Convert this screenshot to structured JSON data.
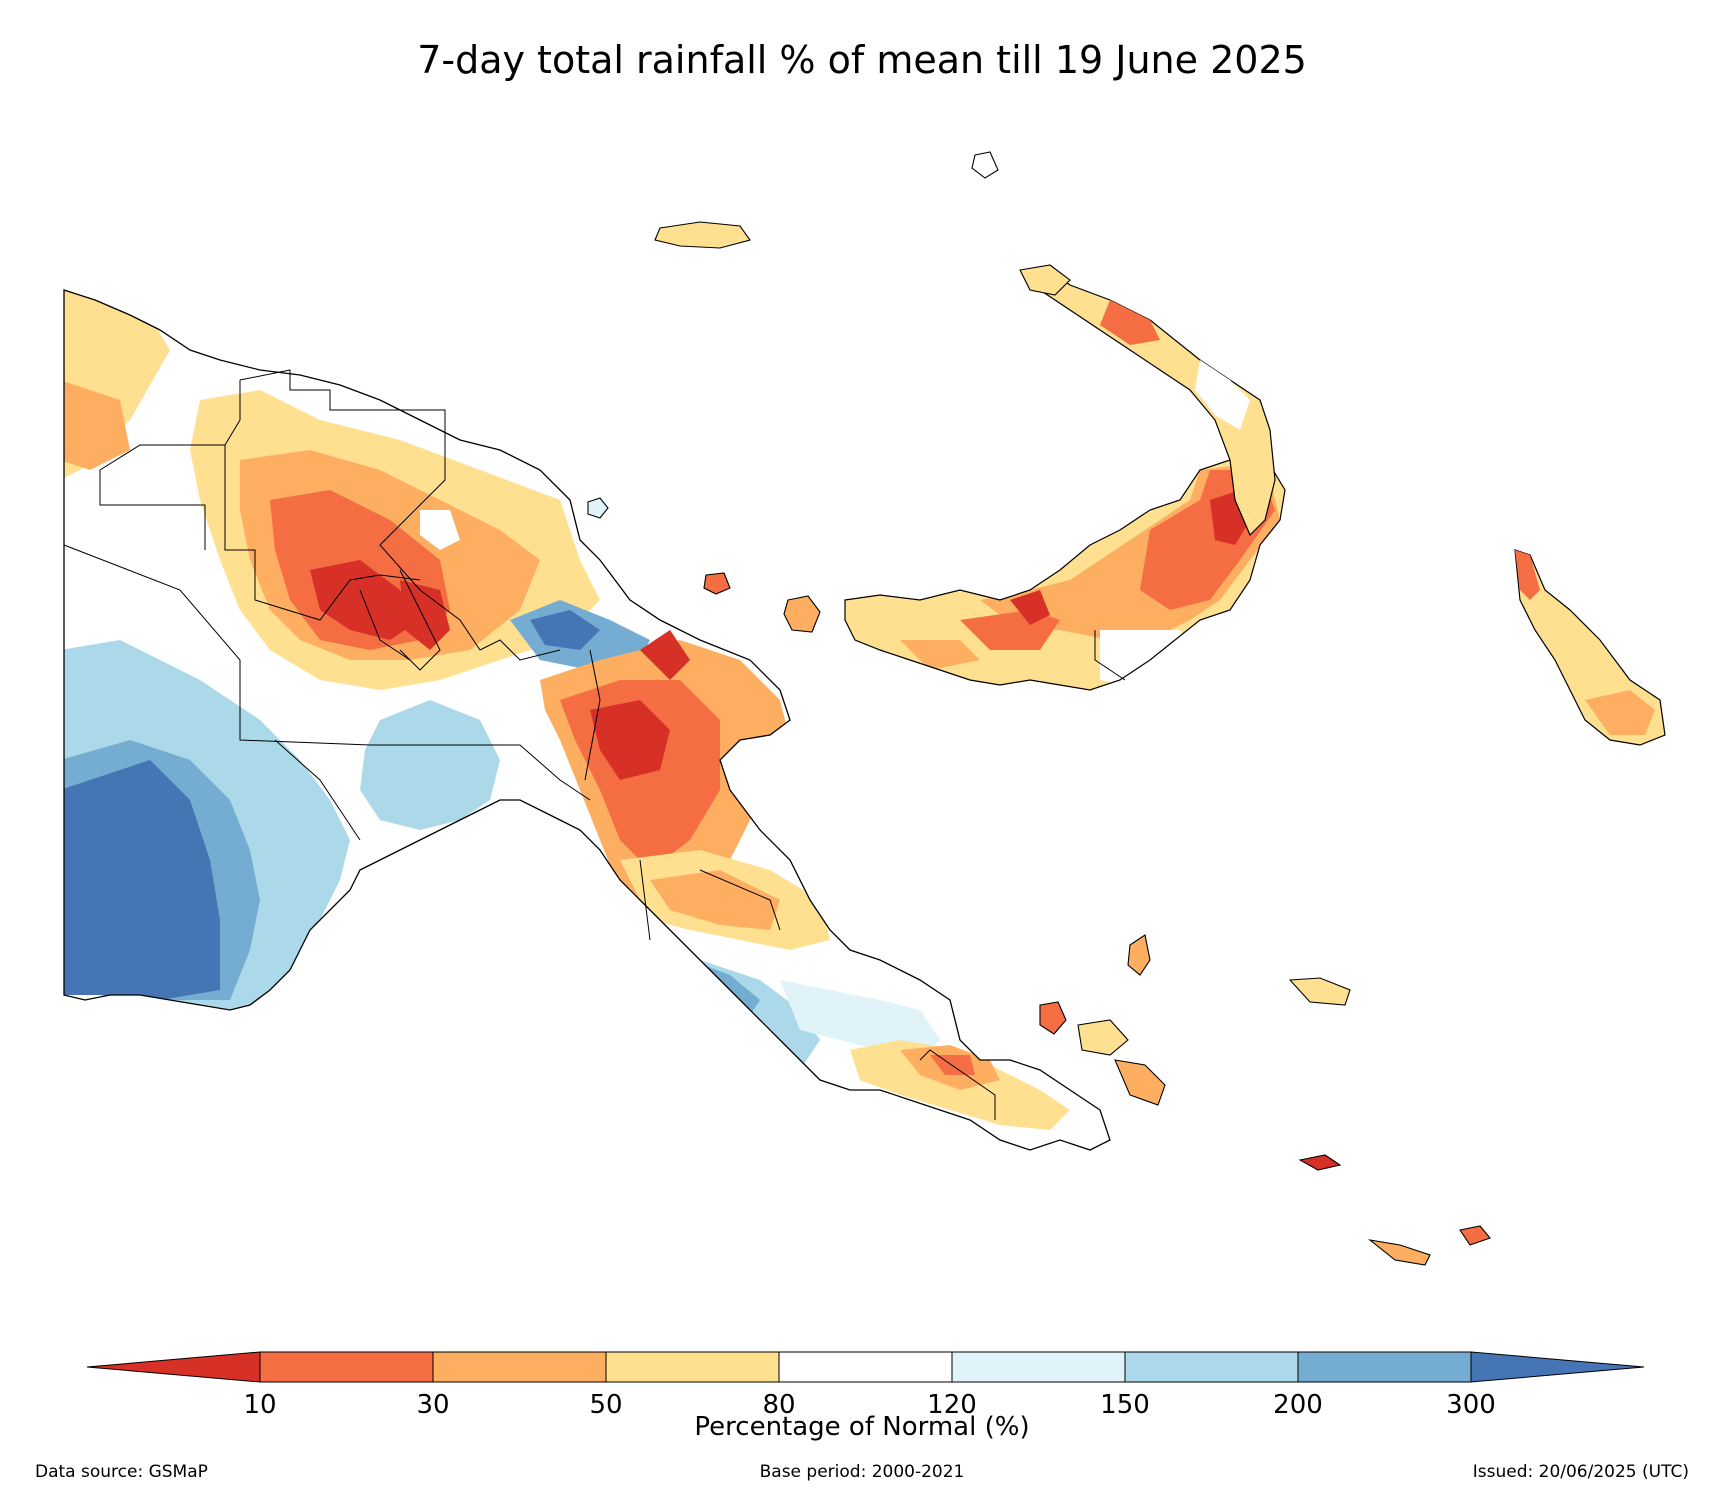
{
  "title": "7-day total rainfall % of mean till 19 June 2025",
  "legend": {
    "axis_label": "Percentage of Normal (%)",
    "ticks": [
      "10",
      "30",
      "50",
      "80",
      "120",
      "150",
      "200",
      "300"
    ],
    "bins": [
      {
        "range": "<10",
        "color": "#d73027"
      },
      {
        "range": "10-30",
        "color": "#f46d43"
      },
      {
        "range": "30-50",
        "color": "#fdae61"
      },
      {
        "range": "50-80",
        "color": "#fee090"
      },
      {
        "range": "80-120",
        "color": "#ffffff"
      },
      {
        "range": "120-150",
        "color": "#e0f3f8"
      },
      {
        "range": "150-200",
        "color": "#abd9e9"
      },
      {
        "range": "200-300",
        "color": "#74add1"
      },
      {
        "range": ">300",
        "color": "#4575b4"
      }
    ]
  },
  "footer": {
    "source": "Data source: GSMaP",
    "base_period": "Base period: 2000-2021",
    "issued": "Issued: 20/06/2025 (UTC)"
  }
}
